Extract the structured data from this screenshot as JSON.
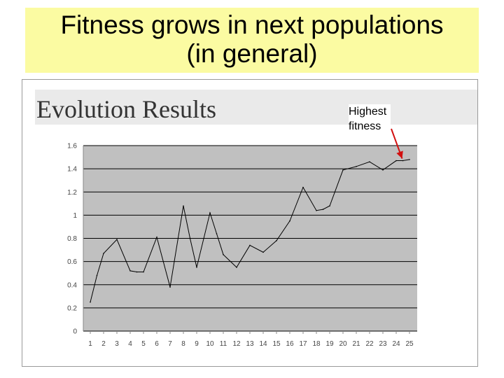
{
  "slide": {
    "title_line1": "Fitness grows in next populations",
    "title_line2": "(in general)"
  },
  "chart_data": {
    "type": "line",
    "title": "Evolution Results",
    "xlabel": "",
    "ylabel": "",
    "ylim": [
      0,
      1.6
    ],
    "yticks": [
      "0",
      "0.2",
      "0.4",
      "0.6",
      "0.8",
      "1",
      "1.2",
      "1.4",
      "1.6"
    ],
    "categories": [
      "1",
      "2",
      "3",
      "4",
      "5",
      "6",
      "7",
      "8",
      "9",
      "10",
      "11",
      "12",
      "13",
      "14",
      "15",
      "16",
      "17",
      "18",
      "19",
      "20",
      "21",
      "22",
      "23",
      "24",
      "25"
    ],
    "x": [
      1,
      1.5,
      2,
      3,
      4,
      4.5,
      5,
      6,
      7,
      8,
      8.5,
      9,
      10,
      10.5,
      11,
      12,
      13,
      14,
      15,
      16,
      17,
      18,
      18.5,
      19,
      20,
      21,
      22,
      23,
      24,
      24.5,
      25
    ],
    "values": [
      0.25,
      0.48,
      0.67,
      0.79,
      0.52,
      0.51,
      0.51,
      0.81,
      0.38,
      1.08,
      0.8,
      0.55,
      1.02,
      0.84,
      0.66,
      0.55,
      0.74,
      0.68,
      0.78,
      0.95,
      1.24,
      1.04,
      1.05,
      1.08,
      1.39,
      1.42,
      1.46,
      1.39,
      1.47,
      1.47,
      1.48
    ],
    "grid": true,
    "annotation": {
      "text_line1": "Highest",
      "text_line2": "fitness",
      "target_x": 24.5,
      "target_y": 1.47
    },
    "colors": {
      "plot_bg": "#c0c0c0",
      "grid": "#000000",
      "line": "#000000",
      "arrow": "#d21010"
    }
  }
}
